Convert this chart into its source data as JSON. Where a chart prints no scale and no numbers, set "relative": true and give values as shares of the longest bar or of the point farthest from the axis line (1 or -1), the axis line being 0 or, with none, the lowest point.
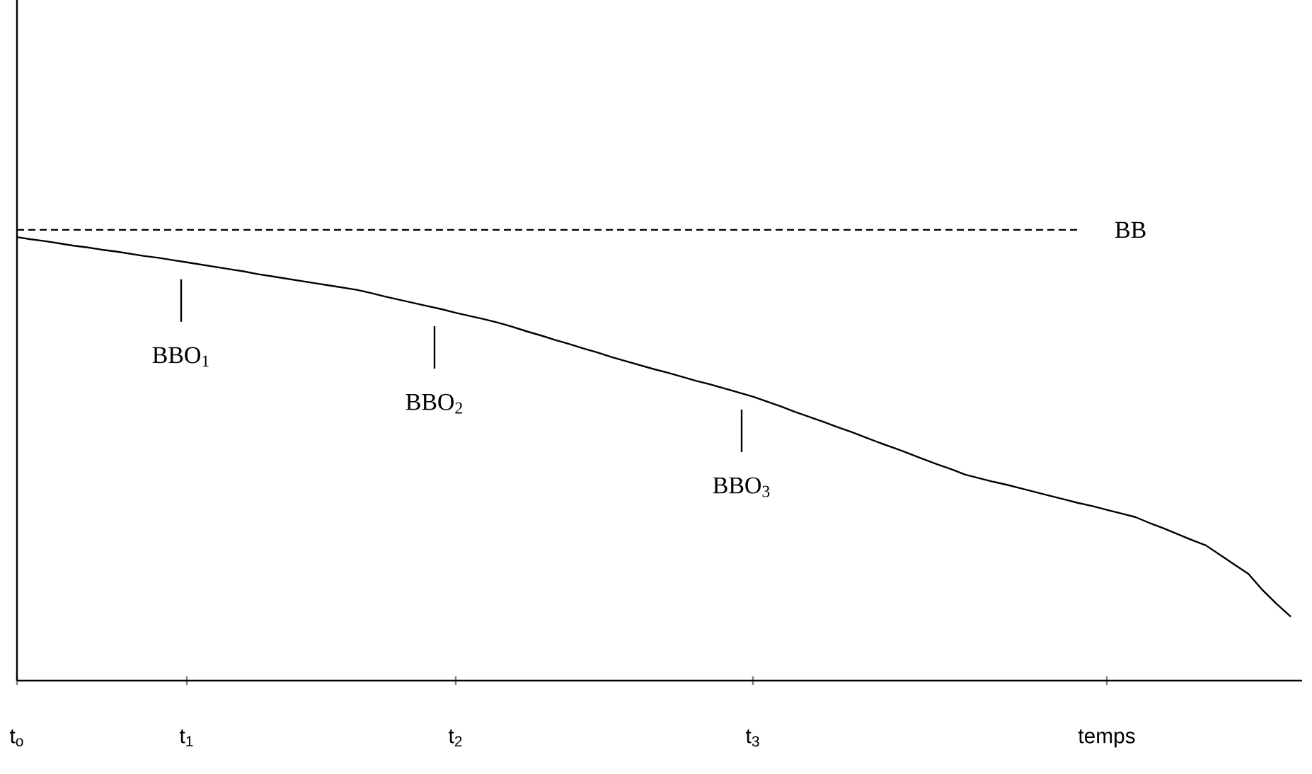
{
  "chart_data": {
    "type": "line",
    "relative": true,
    "tick_labels": "x",
    "grid": false,
    "categories": [
      "t$_{o}$",
      null,
      null,
      null,
      null,
      null,
      null,
      null,
      null,
      null,
      null,
      null,
      "t$_{1}$",
      null,
      null,
      null,
      null,
      null,
      null,
      null,
      null,
      null,
      null,
      null,
      null,
      null,
      null,
      null,
      null,
      null,
      null,
      "t$_{2}$",
      null,
      null,
      null,
      null,
      null,
      null,
      null,
      null,
      null,
      null,
      null,
      null,
      null,
      null,
      null,
      null,
      null,
      null,
      null,
      null,
      "t$_{3}$",
      null,
      null,
      null,
      null,
      null,
      null,
      null,
      null,
      null,
      null,
      null,
      null,
      null,
      null,
      null,
      null,
      null,
      null,
      null,
      null,
      null,
      null,
      null,
      null,
      "temps",
      null,
      null,
      null,
      null,
      null,
      null,
      null,
      null,
      null,
      null,
      null,
      null,
      null
    ],
    "series": [
      {
        "name": "BB",
        "line_style": "dashed",
        "color": "#000000",
        "values": [
          1,
          1,
          1,
          1,
          1,
          1,
          1,
          1,
          1,
          1,
          1,
          1,
          1,
          1,
          1,
          1,
          1,
          1,
          1,
          1,
          1,
          1,
          1,
          1,
          1,
          1,
          1,
          1,
          1,
          1,
          1,
          1,
          1,
          1,
          1,
          1,
          1,
          1,
          1,
          1,
          1,
          1,
          1,
          1,
          1,
          1,
          1,
          1,
          1,
          1,
          1,
          1,
          1,
          1,
          1,
          1,
          1,
          1,
          1,
          1,
          1,
          1,
          1,
          1,
          1,
          1,
          1,
          1,
          1,
          1,
          1,
          1,
          1,
          1,
          1,
          1,
          null,
          null,
          null,
          null,
          null,
          null,
          null,
          null,
          null,
          null,
          null,
          null,
          null,
          null,
          null
        ]
      },
      {
        "line_style": "solid",
        "color": "#000000",
        "values": [
          0.984,
          0.979,
          0.975,
          0.97,
          0.965,
          0.961,
          0.956,
          0.952,
          0.947,
          0.942,
          0.938,
          0.933,
          0.928,
          0.923,
          0.918,
          0.913,
          0.908,
          0.902,
          0.897,
          0.892,
          0.887,
          0.882,
          0.877,
          0.872,
          0.867,
          0.86,
          0.852,
          0.845,
          0.838,
          0.831,
          0.824,
          0.816,
          0.809,
          0.802,
          0.794,
          0.785,
          0.775,
          0.766,
          0.756,
          0.747,
          0.737,
          0.728,
          0.718,
          0.709,
          0.7,
          0.691,
          0.683,
          0.674,
          0.665,
          0.657,
          0.648,
          0.639,
          0.63,
          0.619,
          0.608,
          0.596,
          0.585,
          0.574,
          0.562,
          0.551,
          0.539,
          0.527,
          0.516,
          0.504,
          0.492,
          0.48,
          0.469,
          0.457,
          0.449,
          0.441,
          0.434,
          0.426,
          0.418,
          0.41,
          0.402,
          0.394,
          0.387,
          0.379,
          0.371,
          0.363,
          0.35,
          0.338,
          0.325,
          0.312,
          0.3,
          0.279,
          0.258,
          0.237,
          0.201,
          0.17,
          0.142
        ]
      }
    ],
    "annotations": [
      "BBO$_{1}$",
      "BBO$_{2}$",
      "BBO$_{3}$"
    ]
  }
}
